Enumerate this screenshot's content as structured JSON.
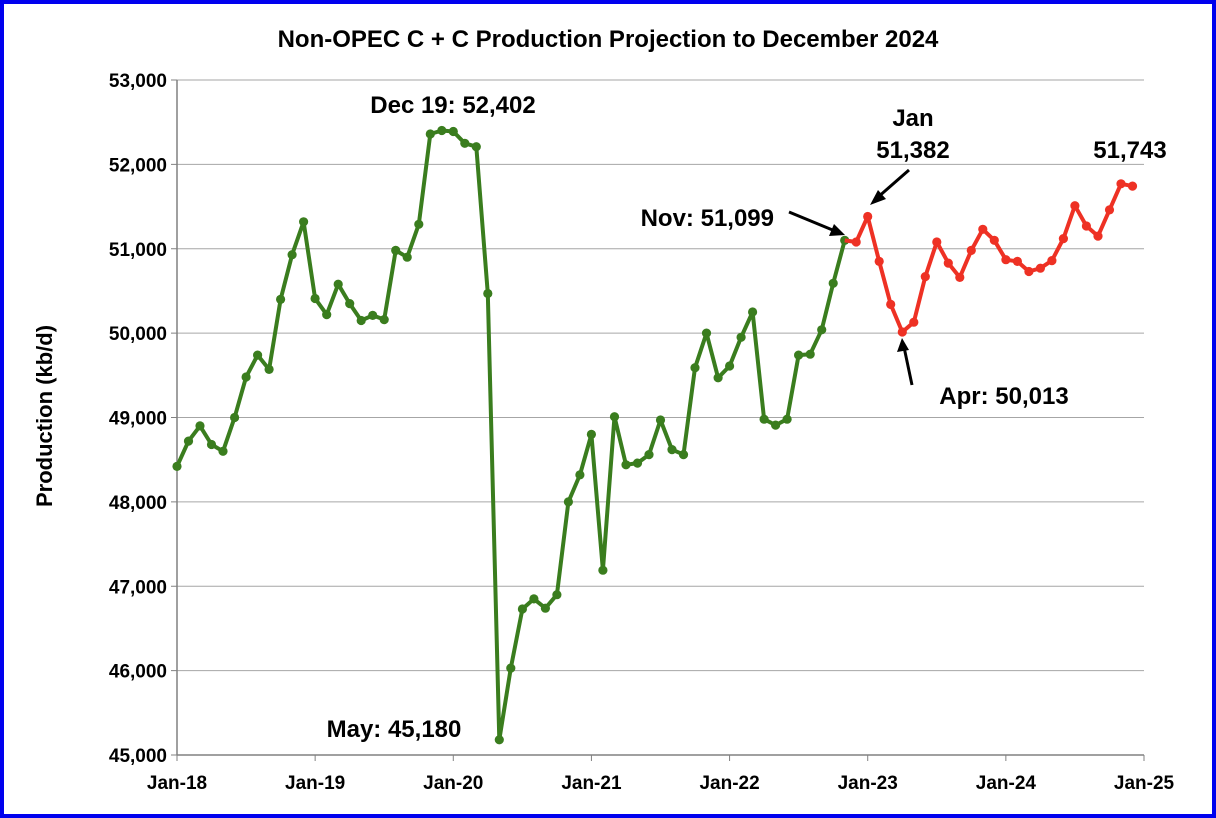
{
  "chart_data": {
    "type": "line",
    "title": "Non-OPEC C + C Production Projection to December 2024",
    "xlabel": "",
    "ylabel": "Production (kb/d)",
    "ylim": [
      45000,
      53000
    ],
    "yticks": [
      "45,000",
      "46,000",
      "47,000",
      "48,000",
      "49,000",
      "50,000",
      "51,000",
      "52,000",
      "53,000"
    ],
    "xticks": [
      "Jan-18",
      "Jan-19",
      "Jan-20",
      "Jan-21",
      "Jan-22",
      "Jan-23",
      "Jan-24",
      "Jan-25"
    ],
    "grid": "horizontal",
    "colors": {
      "history": "#3a7d1e",
      "projection": "#ee3124",
      "frame": "#0000ee"
    },
    "series": [
      {
        "color": "#3a7d1e",
        "start": "2018-01",
        "values": [
          48420,
          48720,
          48900,
          48680,
          48600,
          49000,
          49480,
          49740,
          49570,
          50400,
          50930,
          51320,
          50410,
          50220,
          50580,
          50350,
          50150,
          50210,
          50160,
          50980,
          50900,
          51290,
          52360,
          52402,
          52390,
          52250,
          52210,
          50470,
          45180,
          46030,
          46730,
          46850,
          46740,
          46900,
          48000,
          48320,
          48800,
          47190,
          49010,
          48440,
          48460,
          48560,
          48970,
          48620,
          48560,
          49590,
          50000,
          49470,
          49610,
          49950,
          50250,
          48980,
          48910,
          48980,
          49740,
          49750,
          50040,
          50590,
          51099
        ]
      },
      {
        "color": "#ee3124",
        "start": "2022-11",
        "values": [
          51099,
          51080,
          51382,
          50850,
          50340,
          50013,
          50130,
          50670,
          51080,
          50830,
          50660,
          50980,
          51230,
          51100,
          50870,
          50850,
          50730,
          50770,
          50860,
          51120,
          51510,
          51270,
          51150,
          51460,
          51770,
          51743
        ]
      }
    ],
    "annotations": [
      {
        "text": "Dec 19: 52,402"
      },
      {
        "text": "May: 45,180"
      },
      {
        "text": "Nov: 51,099"
      },
      {
        "text": "Jan"
      },
      {
        "text": "51,382"
      },
      {
        "text": "Apr: 50,013"
      },
      {
        "text": "51,743"
      }
    ]
  }
}
